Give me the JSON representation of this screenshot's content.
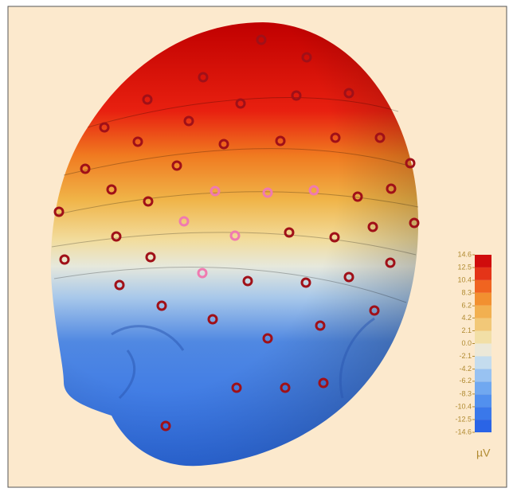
{
  "chart_data": {
    "type": "topomap",
    "colorbar_label": "µV",
    "clim": [
      -14.6,
      14.6
    ],
    "ticks": [
      14.6,
      12.5,
      10.4,
      8.3,
      6.2,
      4.2,
      2.1,
      {
        "value": 0,
        "label": "0.0"
      },
      -2.1,
      -4.2,
      -6.2,
      -8.3,
      -10.4,
      -12.5,
      -14.6
    ],
    "colors": [
      "#2a64e6",
      "#3a78ea",
      "#5290ee",
      "#70a8f0",
      "#98c2f2",
      "#c4dcee",
      "#ece8d8",
      "#f2dfa6",
      "#f2c878",
      "#f2b050",
      "#f29030",
      "#f06420",
      "#e43418",
      "#d00c0c"
    ]
  }
}
